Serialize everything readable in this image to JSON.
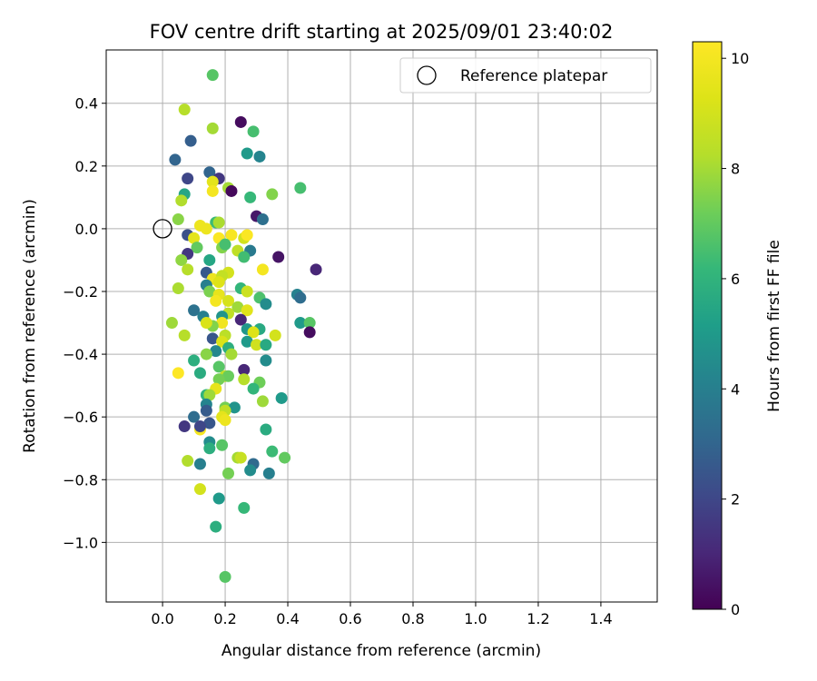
{
  "chart_data": {
    "type": "scatter",
    "title": "FOV centre drift starting at 2025/09/01 23:40:02",
    "xlabel": "Angular distance from reference (arcmin)",
    "ylabel": "Rotation from reference (arcmin)",
    "colorbar_label": "Hours from first FF file",
    "xlim": [
      -0.18,
      1.58
    ],
    "ylim": [
      -1.19,
      0.57
    ],
    "clim": [
      0,
      10.3
    ],
    "x_ticks": [
      0.0,
      0.2,
      0.4,
      0.6,
      0.8,
      1.0,
      1.2,
      1.4
    ],
    "x_tick_labels": [
      "0.0",
      "0.2",
      "0.4",
      "0.6",
      "0.8",
      "1.0",
      "1.2",
      "1.4"
    ],
    "y_ticks": [
      0.4,
      0.2,
      0.0,
      -0.2,
      -0.4,
      -0.6,
      -0.8,
      -1.0
    ],
    "y_tick_labels": [
      "0.4",
      "0.2",
      "0.0",
      "−0.2",
      "−0.4",
      "−0.6",
      "−0.8",
      "−1.0"
    ],
    "colorbar_ticks": [
      0,
      2,
      4,
      6,
      8,
      10
    ],
    "colorbar_tick_labels": [
      "0",
      "2",
      "4",
      "6",
      "8",
      "10"
    ],
    "grid": true,
    "legend": {
      "position": "top-right",
      "entries": [
        "Reference platepar"
      ]
    },
    "reference": {
      "x": 0.0,
      "y": 0.0
    },
    "colormap": "viridis",
    "points": [
      [
        0.16,
        0.49,
        6.8
      ],
      [
        0.07,
        0.38,
        8.3
      ],
      [
        0.25,
        0.34,
        0.3
      ],
      [
        0.16,
        0.32,
        8.0
      ],
      [
        0.29,
        0.31,
        6.5
      ],
      [
        0.09,
        0.28,
        2.8
      ],
      [
        0.27,
        0.24,
        5.0
      ],
      [
        0.31,
        0.23,
        4.2
      ],
      [
        0.04,
        0.22,
        3.0
      ],
      [
        0.15,
        0.18,
        3.0
      ],
      [
        0.18,
        0.16,
        1.5
      ],
      [
        0.08,
        0.16,
        2.0
      ],
      [
        0.16,
        0.15,
        9.5
      ],
      [
        0.21,
        0.13,
        8.0
      ],
      [
        0.22,
        0.12,
        0.2
      ],
      [
        0.44,
        0.13,
        6.5
      ],
      [
        0.16,
        0.12,
        10.0
      ],
      [
        0.07,
        0.11,
        5.5
      ],
      [
        0.35,
        0.11,
        7.5
      ],
      [
        0.28,
        0.1,
        6.2
      ],
      [
        0.06,
        0.09,
        8.2
      ],
      [
        0.3,
        0.04,
        0.6
      ],
      [
        0.32,
        0.03,
        3.4
      ],
      [
        0.17,
        0.02,
        6.3
      ],
      [
        0.18,
        0.02,
        8.1
      ],
      [
        0.05,
        0.03,
        7.6
      ],
      [
        0.12,
        0.01,
        9.8
      ],
      [
        0.14,
        0.0,
        9.8
      ],
      [
        0.08,
        -0.02,
        2.3
      ],
      [
        0.1,
        -0.03,
        9.5
      ],
      [
        0.18,
        -0.03,
        10.2
      ],
      [
        0.22,
        -0.02,
        10.1
      ],
      [
        0.26,
        -0.03,
        9.0
      ],
      [
        0.27,
        -0.02,
        10.2
      ],
      [
        0.11,
        -0.06,
        7.0
      ],
      [
        0.19,
        -0.06,
        7.5
      ],
      [
        0.24,
        -0.07,
        8.5
      ],
      [
        0.28,
        -0.07,
        3.8
      ],
      [
        0.2,
        -0.05,
        6.5
      ],
      [
        0.08,
        -0.08,
        1.5
      ],
      [
        0.37,
        -0.09,
        0.5
      ],
      [
        0.26,
        -0.09,
        6.4
      ],
      [
        0.06,
        -0.1,
        7.7
      ],
      [
        0.15,
        -0.1,
        5.5
      ],
      [
        0.08,
        -0.13,
        8.3
      ],
      [
        0.14,
        -0.14,
        2.6
      ],
      [
        0.21,
        -0.14,
        9.0
      ],
      [
        0.32,
        -0.13,
        10.0
      ],
      [
        0.49,
        -0.13,
        1.0
      ],
      [
        0.16,
        -0.16,
        9.8
      ],
      [
        0.19,
        -0.15,
        8.6
      ],
      [
        0.14,
        -0.18,
        4.0
      ],
      [
        0.18,
        -0.17,
        9.3
      ],
      [
        0.25,
        -0.19,
        6.1
      ],
      [
        0.27,
        -0.2,
        8.8
      ],
      [
        0.05,
        -0.19,
        8.1
      ],
      [
        0.15,
        -0.2,
        7.4
      ],
      [
        0.18,
        -0.21,
        9.6
      ],
      [
        0.43,
        -0.21,
        4.1
      ],
      [
        0.44,
        -0.22,
        3.3
      ],
      [
        0.31,
        -0.22,
        6.6
      ],
      [
        0.17,
        -0.23,
        10.0
      ],
      [
        0.21,
        -0.23,
        9.1
      ],
      [
        0.24,
        -0.25,
        7.9
      ],
      [
        0.33,
        -0.24,
        4.5
      ],
      [
        0.1,
        -0.26,
        3.5
      ],
      [
        0.27,
        -0.26,
        9.4
      ],
      [
        0.21,
        -0.27,
        8.5
      ],
      [
        0.19,
        -0.28,
        4.8
      ],
      [
        0.13,
        -0.28,
        4.0
      ],
      [
        0.25,
        -0.29,
        1.0
      ],
      [
        0.19,
        -0.3,
        9.9
      ],
      [
        0.03,
        -0.3,
        7.9
      ],
      [
        0.16,
        -0.31,
        7.5
      ],
      [
        0.14,
        -0.3,
        9.2
      ],
      [
        0.44,
        -0.3,
        5.0
      ],
      [
        0.47,
        -0.3,
        6.8
      ],
      [
        0.31,
        -0.32,
        5.6
      ],
      [
        0.27,
        -0.32,
        4.9
      ],
      [
        0.47,
        -0.33,
        0.3
      ],
      [
        0.07,
        -0.34,
        8.3
      ],
      [
        0.2,
        -0.34,
        8.4
      ],
      [
        0.29,
        -0.33,
        9.3
      ],
      [
        0.36,
        -0.34,
        9.0
      ],
      [
        0.16,
        -0.35,
        2.5
      ],
      [
        0.27,
        -0.36,
        5.0
      ],
      [
        0.3,
        -0.37,
        8.9
      ],
      [
        0.33,
        -0.37,
        5.6
      ],
      [
        0.19,
        -0.36,
        9.2
      ],
      [
        0.21,
        -0.38,
        5.8
      ],
      [
        0.17,
        -0.39,
        4.3
      ],
      [
        0.14,
        -0.4,
        7.6
      ],
      [
        0.22,
        -0.4,
        8.0
      ],
      [
        0.33,
        -0.42,
        4.5
      ],
      [
        0.1,
        -0.42,
        5.8
      ],
      [
        0.18,
        -0.44,
        6.8
      ],
      [
        0.26,
        -0.45,
        1.0
      ],
      [
        0.12,
        -0.46,
        5.7
      ],
      [
        0.26,
        -0.48,
        8.3
      ],
      [
        0.2,
        -0.47,
        8.6
      ],
      [
        0.21,
        -0.47,
        7.1
      ],
      [
        0.18,
        -0.48,
        7.3
      ],
      [
        0.05,
        -0.46,
        10.3
      ],
      [
        0.31,
        -0.49,
        7.2
      ],
      [
        0.29,
        -0.51,
        6.1
      ],
      [
        0.17,
        -0.51,
        9.6
      ],
      [
        0.14,
        -0.53,
        6.0
      ],
      [
        0.15,
        -0.53,
        7.9
      ],
      [
        0.32,
        -0.55,
        7.9
      ],
      [
        0.38,
        -0.54,
        5.0
      ],
      [
        0.14,
        -0.56,
        4.2
      ],
      [
        0.2,
        -0.57,
        7.3
      ],
      [
        0.23,
        -0.57,
        4.8
      ],
      [
        0.2,
        -0.58,
        8.5
      ],
      [
        0.14,
        -0.58,
        2.7
      ],
      [
        0.1,
        -0.6,
        3.3
      ],
      [
        0.19,
        -0.6,
        9.5
      ],
      [
        0.2,
        -0.61,
        9.8
      ],
      [
        0.15,
        -0.62,
        2.5
      ],
      [
        0.07,
        -0.63,
        1.5
      ],
      [
        0.12,
        -0.64,
        10.0
      ],
      [
        0.12,
        -0.63,
        2.0
      ],
      [
        0.33,
        -0.64,
        5.7
      ],
      [
        0.15,
        -0.68,
        4.5
      ],
      [
        0.15,
        -0.7,
        5.8
      ],
      [
        0.19,
        -0.69,
        6.8
      ],
      [
        0.35,
        -0.71,
        6.3
      ],
      [
        0.39,
        -0.73,
        7.0
      ],
      [
        0.08,
        -0.74,
        8.2
      ],
      [
        0.24,
        -0.73,
        8.0
      ],
      [
        0.25,
        -0.73,
        8.7
      ],
      [
        0.29,
        -0.75,
        3.2
      ],
      [
        0.12,
        -0.75,
        4.0
      ],
      [
        0.28,
        -0.77,
        4.5
      ],
      [
        0.21,
        -0.78,
        7.3
      ],
      [
        0.34,
        -0.78,
        4.0
      ],
      [
        0.12,
        -0.83,
        9.0
      ],
      [
        0.18,
        -0.86,
        5.0
      ],
      [
        0.26,
        -0.89,
        6.2
      ],
      [
        0.17,
        -0.95,
        5.8
      ],
      [
        0.2,
        -1.11,
        6.8
      ]
    ]
  }
}
